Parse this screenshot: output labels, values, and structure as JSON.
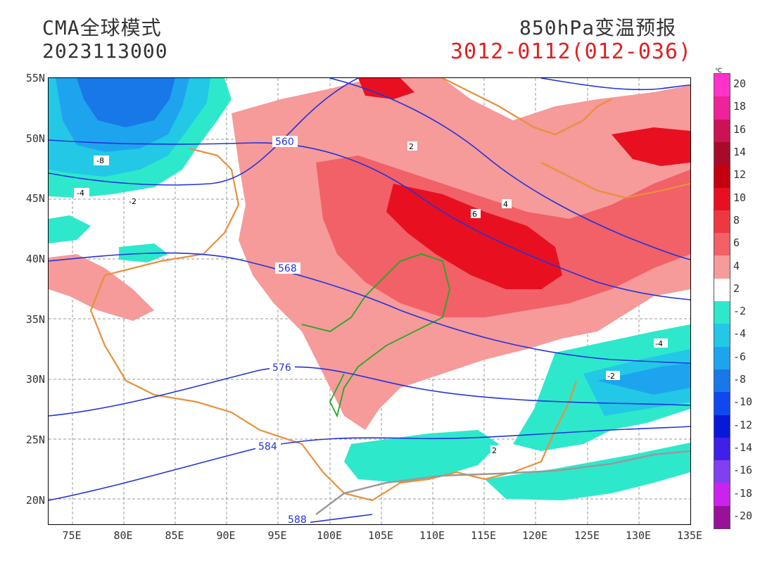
{
  "header": {
    "model_name": "CMA全球模式",
    "init_time": "2023113000",
    "product_title": "850hPa变温预报",
    "valid_range": "3012-0112(012-036)"
  },
  "map": {
    "lat_labels": [
      "55N",
      "50N",
      "45N",
      "40N",
      "35N",
      "30N",
      "25N",
      "20N"
    ],
    "lon_labels": [
      "75E",
      "80E",
      "85E",
      "90E",
      "95E",
      "100E",
      "105E",
      "110E",
      "115E",
      "120E",
      "125E",
      "130E",
      "135E"
    ],
    "geopotential_labels": [
      "560",
      "568",
      "576",
      "584",
      "588"
    ],
    "temp_change_labels": [
      "-8",
      "-4",
      "-2",
      "2",
      "4",
      "6",
      "-2",
      "-4",
      "2"
    ]
  },
  "colorbar": {
    "unit": "℃",
    "labels": [
      "20",
      "18",
      "16",
      "14",
      "12",
      "10",
      "8",
      "6",
      "4",
      "2",
      "-2",
      "-4",
      "-6",
      "-8",
      "-10",
      "-12",
      "-14",
      "-16",
      "-18",
      "-20"
    ],
    "colors": [
      "#ff33cc",
      "#ee2299",
      "#cc1155",
      "#a80a2a",
      "#c40010",
      "#e81020",
      "#ee3840",
      "#f26068",
      "#f69a9a",
      "#ffffff",
      "#2ee8cc",
      "#22c8e6",
      "#1ea4ee",
      "#1878e8",
      "#1048f0",
      "#0818d8",
      "#4020e8",
      "#8040f0",
      "#cc22ee",
      "#991199"
    ]
  },
  "styles": {
    "warm_colors": [
      "#f69a9a",
      "#f26068",
      "#e81020"
    ],
    "cold_colors": [
      "#2ee8cc",
      "#1ea4ee",
      "#1878e8"
    ],
    "contour_color": "#2233dd",
    "border_color": "#e8903a",
    "river_color": "#22aa22"
  }
}
